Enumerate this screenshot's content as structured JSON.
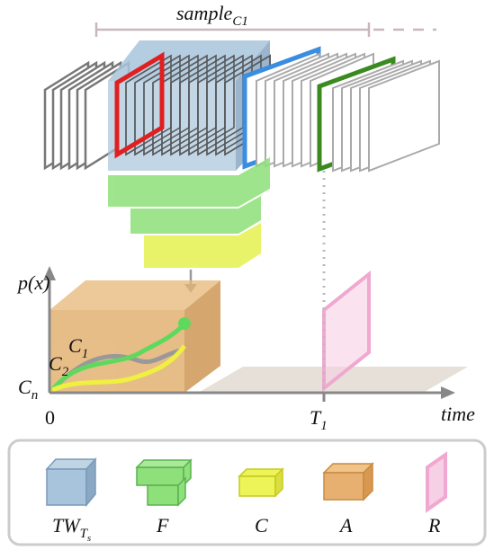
{
  "header": {
    "label": {
      "base": "sample",
      "sub": "C1"
    }
  },
  "axes": {
    "y_label": "p(x)",
    "origin": "0",
    "x_label": "time",
    "t1": {
      "base": "T",
      "sub": "1"
    }
  },
  "curves": [
    {
      "base": "C",
      "sub": "1"
    },
    {
      "base": "C",
      "sub": "2"
    },
    {
      "base": "C",
      "sub": "n"
    }
  ],
  "legend": [
    {
      "base": "TW",
      "sub": "T",
      "subsub": "s"
    },
    {
      "base": "F"
    },
    {
      "base": "C"
    },
    {
      "base": "A"
    },
    {
      "base": "R"
    }
  ]
}
